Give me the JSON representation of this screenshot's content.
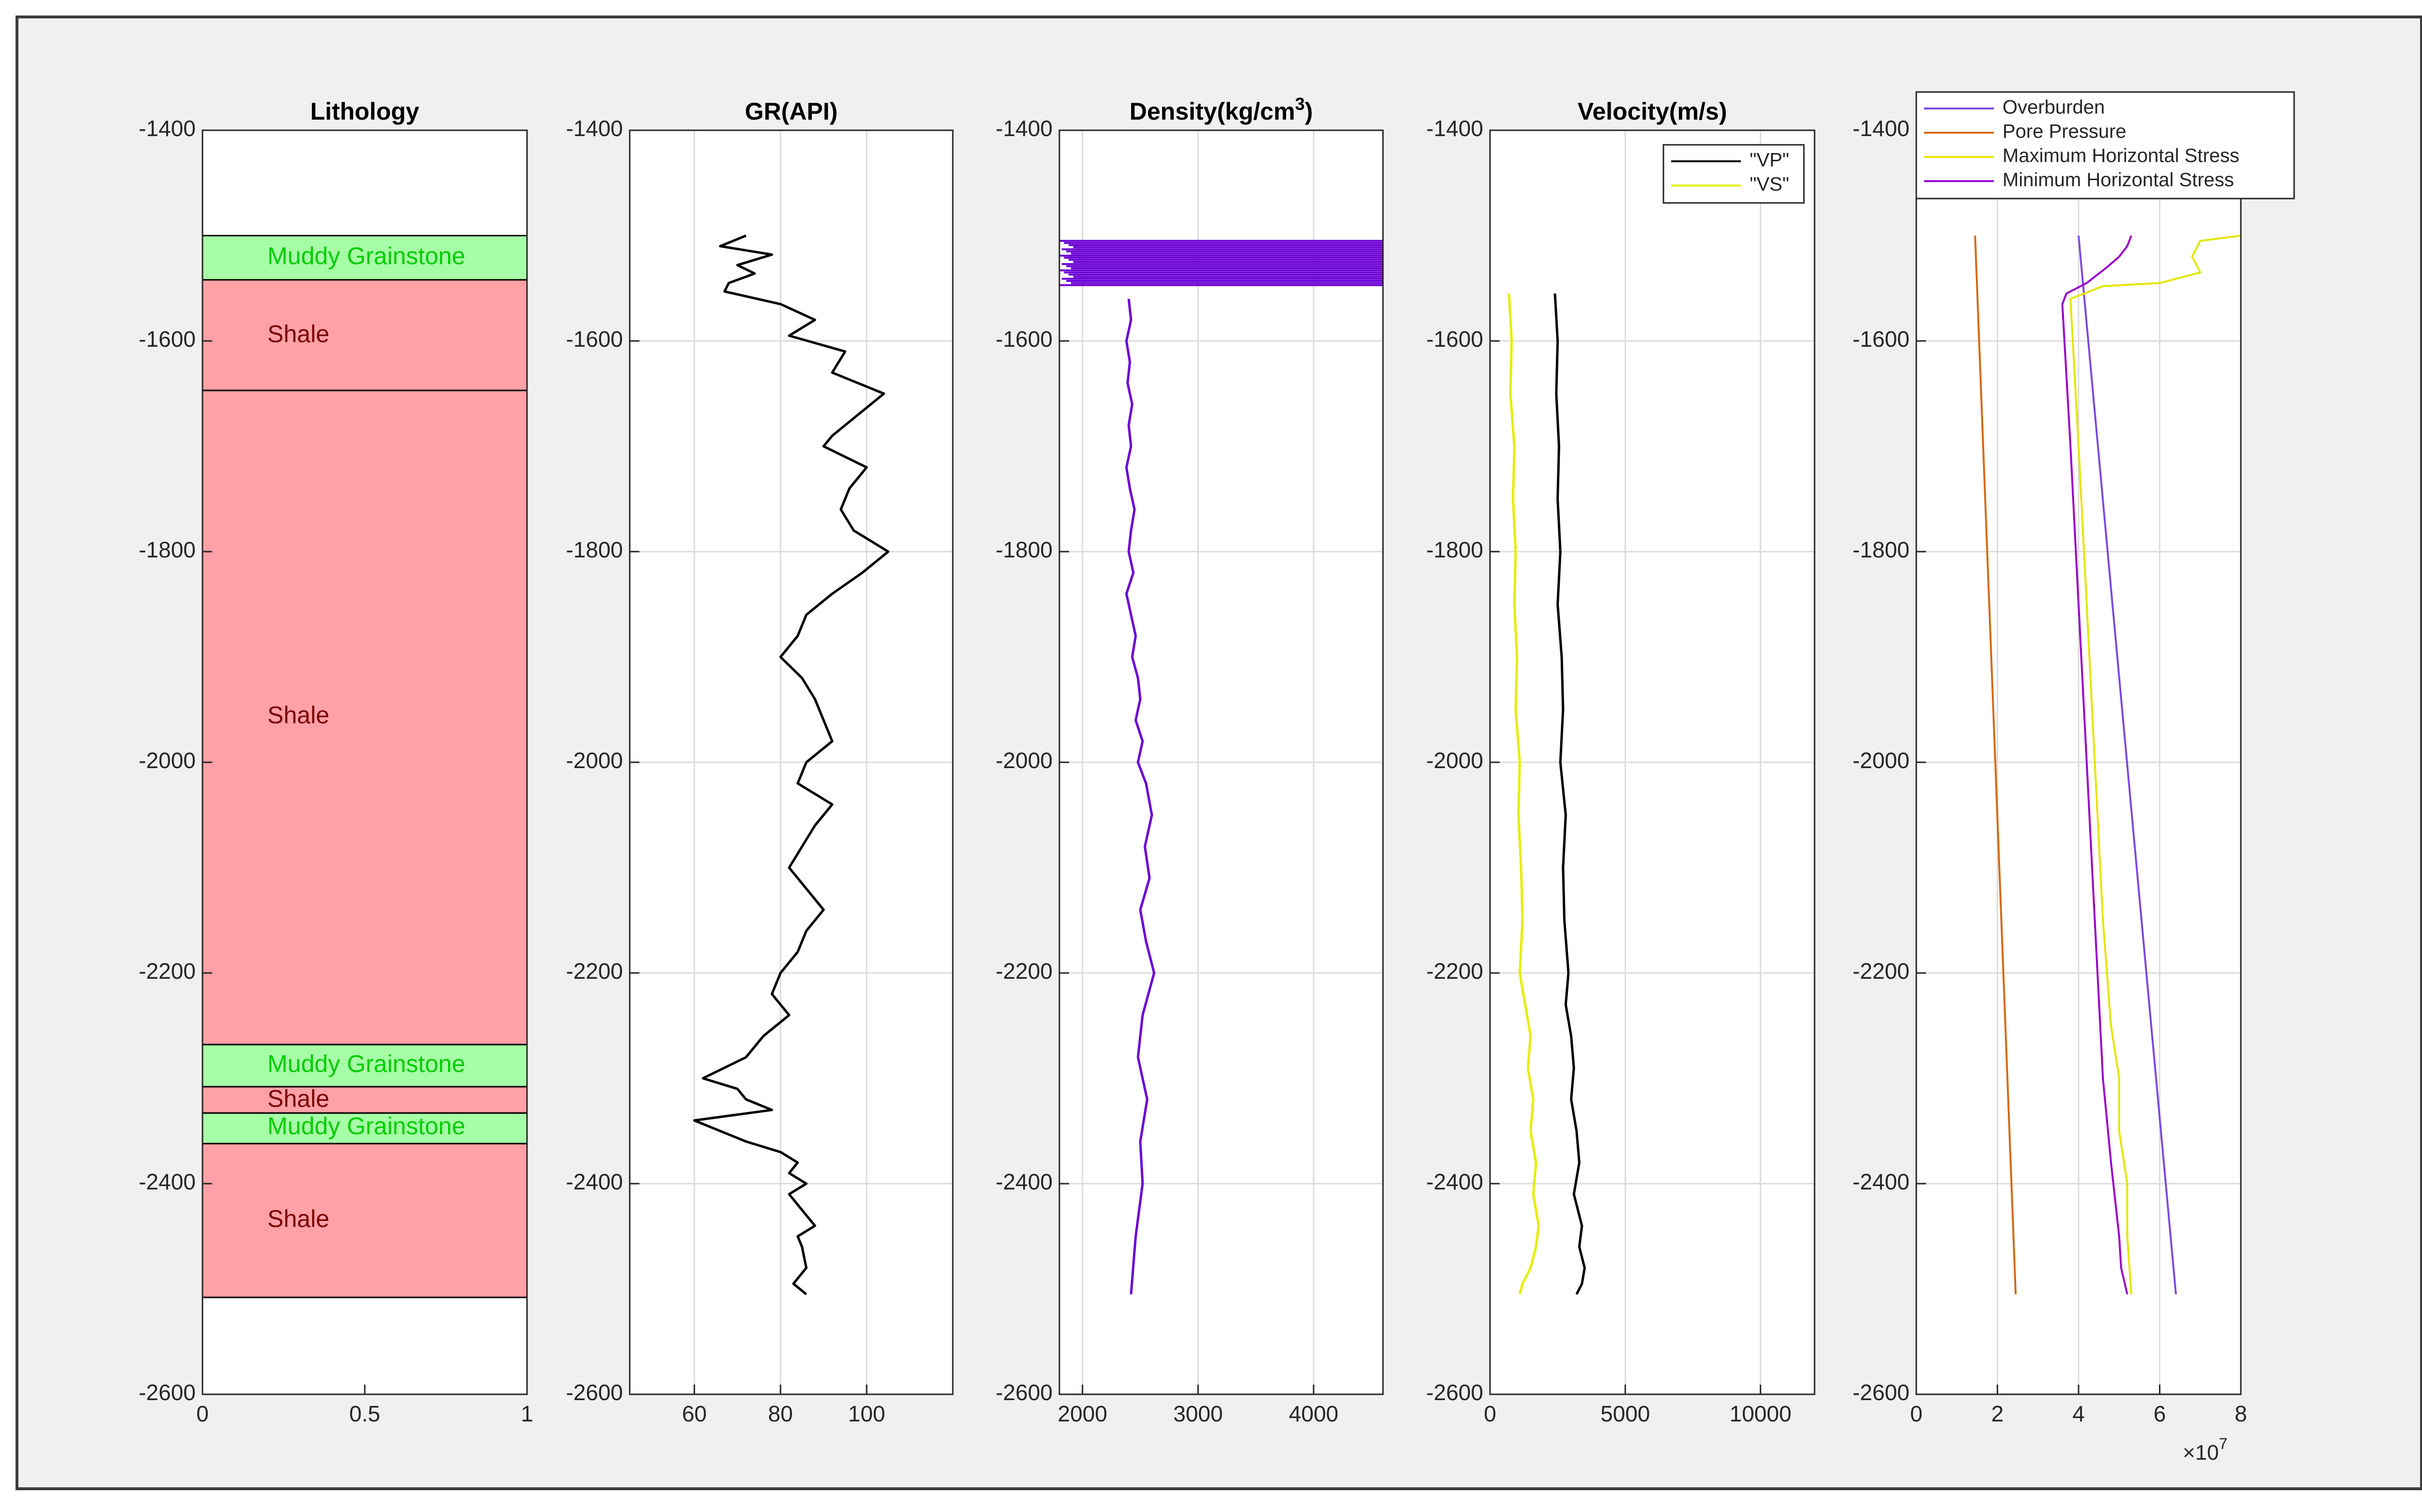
{
  "chart_data": [
    {
      "type": "lithology",
      "title": "Lithology",
      "xlim": [
        0,
        1
      ],
      "ylim": [
        -2600,
        -1400
      ],
      "xticks": [
        "0",
        "0.5",
        "1"
      ],
      "yticks": [
        "-1400",
        "-1600",
        "-1800",
        "-2000",
        "-2200",
        "-2400",
        "-2600"
      ],
      "layers": [
        {
          "name": "Muddy Grainstone",
          "top": -1500,
          "bottom": -1542,
          "fill": "#a6ffa6",
          "text_color": "#00cc00"
        },
        {
          "name": "Shale",
          "top": -1542,
          "bottom": -1647,
          "fill": "#ffa1a6",
          "text_color": "#7a0000"
        },
        {
          "name": "Shale",
          "top": -1647,
          "bottom": -2268,
          "fill": "#ffa1a6",
          "text_color": "#7a0000"
        },
        {
          "name": "Muddy Grainstone",
          "top": -2268,
          "bottom": -2308,
          "fill": "#a6ffa6",
          "text_color": "#00cc00"
        },
        {
          "name": "Shale",
          "top": -2308,
          "bottom": -2333,
          "fill": "#ffa1a6",
          "text_color": "#7a0000"
        },
        {
          "name": "Muddy Grainstone",
          "top": -2333,
          "bottom": -2362,
          "fill": "#a6ffa6",
          "text_color": "#00cc00"
        },
        {
          "name": "Shale",
          "top": -2362,
          "bottom": -2508,
          "fill": "#ffa1a6",
          "text_color": "#7a0000"
        }
      ],
      "labels": [
        {
          "text": "Muddy Grainstone",
          "depth": -1521,
          "x": 0.2,
          "color": "#00cc00"
        },
        {
          "text": "Shale",
          "depth": -1595,
          "x": 0.2,
          "color": "#7a0000"
        },
        {
          "text": "Shale",
          "depth": -1957,
          "x": 0.2,
          "color": "#7a0000"
        },
        {
          "text": "Muddy Grainstone",
          "depth": -2288,
          "x": 0.2,
          "color": "#00cc00"
        },
        {
          "text": "Shale",
          "depth": -2321,
          "x": 0.2,
          "color": "#7a0000"
        },
        {
          "text": "Muddy Grainstone",
          "depth": -2347,
          "x": 0.2,
          "color": "#00cc00"
        },
        {
          "text": "Shale",
          "depth": -2435,
          "x": 0.2,
          "color": "#7a0000"
        }
      ]
    },
    {
      "type": "line",
      "title": "GR(API)",
      "xlim": [
        45,
        120
      ],
      "ylim": [
        -2600,
        -1400
      ],
      "xticks": [
        "60",
        "80",
        "100"
      ],
      "yticks": [
        "-1400",
        "-1600",
        "-1800",
        "-2000",
        "-2200",
        "-2400",
        "-2600"
      ],
      "grid": true,
      "series": [
        {
          "color": "#000000",
          "x": [
            72,
            66,
            78,
            70,
            74,
            68,
            67,
            80,
            88,
            82,
            95,
            92,
            104,
            98,
            92,
            90,
            100,
            96,
            94,
            97,
            105,
            99,
            92,
            86,
            84,
            80,
            85,
            88,
            90,
            92,
            86,
            84,
            92,
            88,
            85,
            82,
            86,
            90,
            86,
            84,
            80,
            78,
            82,
            76,
            72,
            62,
            70,
            72,
            78,
            60,
            66,
            72,
            80,
            84,
            82,
            86,
            82,
            84,
            86,
            88,
            84,
            85,
            86,
            83,
            86
          ],
          "depth": [
            -1500,
            -1510,
            -1518,
            -1528,
            -1536,
            -1545,
            -1553,
            -1565,
            -1580,
            -1595,
            -1610,
            -1630,
            -1650,
            -1670,
            -1690,
            -1700,
            -1720,
            -1740,
            -1760,
            -1780,
            -1800,
            -1820,
            -1840,
            -1860,
            -1880,
            -1900,
            -1920,
            -1940,
            -1960,
            -1980,
            -2000,
            -2020,
            -2040,
            -2060,
            -2080,
            -2100,
            -2120,
            -2140,
            -2160,
            -2180,
            -2200,
            -2220,
            -2240,
            -2260,
            -2280,
            -2300,
            -2310,
            -2320,
            -2330,
            -2340,
            -2350,
            -2360,
            -2370,
            -2380,
            -2390,
            -2400,
            -2410,
            -2420,
            -2430,
            -2440,
            -2450,
            -2460,
            -2480,
            -2495,
            -2505
          ]
        }
      ]
    },
    {
      "type": "line",
      "title": "Density(kg/cm",
      "title_sup": "3",
      "title_end": ")",
      "xlim": [
        1800,
        4600
      ],
      "ylim": [
        -2600,
        -1400
      ],
      "xticks": [
        "2000",
        "3000",
        "4000"
      ],
      "yticks": [
        "-1400",
        "-1600",
        "-1800",
        "-2000",
        "-2200",
        "-2400",
        "-2600"
      ],
      "grid": true,
      "series": [
        {
          "color": "#6a00d4",
          "x": [
            2400,
            2420,
            2380,
            2410,
            2390,
            2430,
            2400,
            2420,
            2380,
            2410,
            2450,
            2420,
            2400,
            2440,
            2380,
            2420,
            2460,
            2430,
            2480,
            2500,
            2460,
            2520,
            2480,
            2550,
            2600,
            2540,
            2580,
            2500,
            2550,
            2620,
            2520,
            2480,
            2560,
            2500,
            2520,
            2460,
            2420
          ],
          "depth": [
            -1560,
            -1580,
            -1600,
            -1620,
            -1640,
            -1660,
            -1680,
            -1700,
            -1720,
            -1740,
            -1760,
            -1780,
            -1800,
            -1820,
            -1840,
            -1860,
            -1880,
            -1900,
            -1920,
            -1940,
            -1960,
            -1980,
            -2000,
            -2020,
            -2050,
            -2080,
            -2110,
            -2140,
            -2170,
            -2200,
            -2240,
            -2280,
            -2320,
            -2360,
            -2400,
            -2450,
            -2505
          ]
        }
      ],
      "anomaly_band": {
        "color": "#6a00d4",
        "depth_top": -1505,
        "depth_bottom": -1548,
        "x_from": 1800,
        "x_to": 4600
      }
    },
    {
      "type": "line",
      "title": "Velocity(m/s)",
      "xlim": [
        0,
        12000
      ],
      "ylim": [
        -2600,
        -1400
      ],
      "xticks": [
        "0",
        "5000",
        "10000"
      ],
      "yticks": [
        "-1400",
        "-1600",
        "-1800",
        "-2000",
        "-2200",
        "-2400",
        "-2600"
      ],
      "grid": true,
      "legend": {
        "location": "top-right",
        "entries": [
          "\"VP\"",
          "\"VS\""
        ]
      },
      "series": [
        {
          "name": "\"VP\"",
          "color": "#000000",
          "x": [
            2400,
            2500,
            2450,
            2550,
            2500,
            2600,
            2500,
            2650,
            2700,
            2600,
            2800,
            2700,
            2750,
            2900,
            2800,
            3000,
            3100,
            3000,
            3200,
            3300,
            3100,
            3400,
            3300,
            3500,
            3400,
            3200
          ],
          "depth": [
            -1555,
            -1600,
            -1650,
            -1700,
            -1750,
            -1800,
            -1850,
            -1900,
            -1950,
            -2000,
            -2050,
            -2100,
            -2150,
            -2200,
            -2230,
            -2260,
            -2290,
            -2320,
            -2350,
            -2380,
            -2410,
            -2440,
            -2460,
            -2480,
            -2495,
            -2505
          ]
        },
        {
          "name": "\"VS\"",
          "color": "#e5ee00",
          "x": [
            700,
            800,
            750,
            900,
            850,
            950,
            900,
            1000,
            950,
            1100,
            1050,
            1150,
            1200,
            1100,
            1300,
            1500,
            1400,
            1600,
            1500,
            1700,
            1600,
            1800,
            1700,
            1500,
            1200,
            1100
          ],
          "depth": [
            -1555,
            -1600,
            -1650,
            -1700,
            -1750,
            -1800,
            -1850,
            -1900,
            -1950,
            -2000,
            -2050,
            -2100,
            -2150,
            -2200,
            -2230,
            -2260,
            -2290,
            -2320,
            -2350,
            -2380,
            -2410,
            -2440,
            -2460,
            -2480,
            -2495,
            -2505
          ]
        }
      ]
    },
    {
      "type": "line",
      "title": "",
      "xlim": [
        0,
        80000000
      ],
      "ylim": [
        -2600,
        -1400
      ],
      "xticks": [
        "0",
        "2",
        "4",
        "6",
        "8"
      ],
      "x_exponent": "×10",
      "x_exponent_power": "7",
      "yticks": [
        "-1400",
        "-1600",
        "-1800",
        "-2000",
        "-2200",
        "-2400",
        "-2600"
      ],
      "grid": true,
      "legend": {
        "location": "top-left",
        "entries": [
          "Overburden",
          "Pore Pressure",
          "Maximum Horizontal Stress",
          "Minimum Horizontal Stress"
        ]
      },
      "series": [
        {
          "name": "Overburden",
          "color": "#7b4ae0",
          "x": [
            40000000,
            64000000
          ],
          "depth": [
            -1500,
            -2505
          ]
        },
        {
          "name": "Pore Pressure",
          "color": "#d46a12",
          "x": [
            14500000,
            24500000
          ],
          "depth": [
            -1500,
            -2505
          ]
        },
        {
          "name": "Maximum Horizontal Stress",
          "color": "#e3e600",
          "x": [
            80000000,
            70000000,
            68000000,
            70000000,
            60000000,
            46000000,
            38000000,
            40000000,
            42000000,
            44000000,
            46000000,
            48000000,
            50000000,
            50000000,
            52000000,
            52000000,
            53000000
          ],
          "depth": [
            -1500,
            -1505,
            -1520,
            -1535,
            -1545,
            -1548,
            -1560,
            -1700,
            -1850,
            -2000,
            -2150,
            -2250,
            -2300,
            -2350,
            -2400,
            -2450,
            -2505
          ]
        },
        {
          "name": "Minimum Horizontal Stress",
          "color": "#9b00c8",
          "x": [
            53000000,
            52000000,
            50000000,
            47000000,
            42000000,
            37000000,
            36000000,
            38000000,
            40000000,
            42000000,
            44000000,
            46000000,
            48000000,
            50000000,
            50500000,
            52000000
          ],
          "depth": [
            -1500,
            -1510,
            -1520,
            -1530,
            -1545,
            -1555,
            -1565,
            -1700,
            -1850,
            -2000,
            -2150,
            -2300,
            -2380,
            -2450,
            -2480,
            -2505
          ]
        }
      ]
    }
  ]
}
